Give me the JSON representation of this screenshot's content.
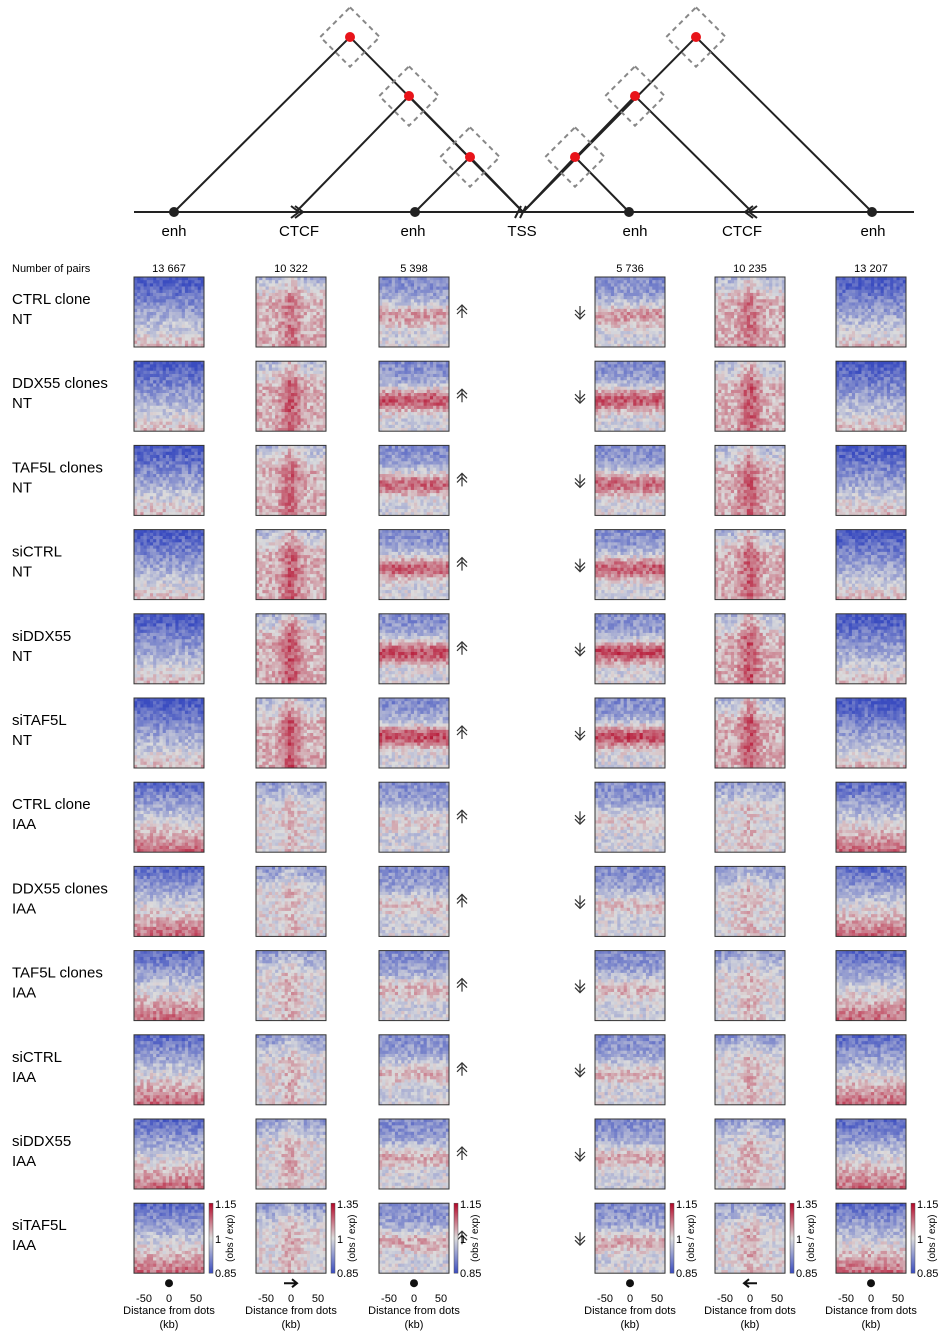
{
  "diagram": {
    "anchor_labels": [
      "enh",
      "CTCF",
      "enh",
      "TSS",
      "enh",
      "CTCF",
      "enh"
    ],
    "dot_color": "#e8141a",
    "line_color": "#222222",
    "box_color": "#888888"
  },
  "header": {
    "number_of_pairs_label": "Number of pairs",
    "pairs": [
      "13 667",
      "10 322",
      "5 398",
      "5 736",
      "10 235",
      "13 207"
    ]
  },
  "rows": [
    {
      "line1": "CTRL clone",
      "line2": "NT"
    },
    {
      "line1": "DDX55 clones",
      "line2": "NT"
    },
    {
      "line1": "TAF5L clones",
      "line2": "NT"
    },
    {
      "line1": "siCTRL",
      "line2": "NT"
    },
    {
      "line1": "siDDX55",
      "line2": "NT"
    },
    {
      "line1": "siTAF5L",
      "line2": "NT"
    },
    {
      "line1": "CTRL clone",
      "line2": "IAA"
    },
    {
      "line1": "DDX55 clones",
      "line2": "IAA"
    },
    {
      "line1": "TAF5L clones",
      "line2": "IAA"
    },
    {
      "line1": "siCTRL",
      "line2": "IAA"
    },
    {
      "line1": "siDDX55",
      "line2": "IAA"
    },
    {
      "line1": "siTAF5L",
      "line2": "IAA"
    }
  ],
  "colorbars": [
    {
      "max": "1.15",
      "mid": "1",
      "min": "0.85",
      "unit": "(obs / exp)"
    },
    {
      "max": "1.35",
      "mid": "1",
      "min": "0.85",
      "unit": "(obs / exp)"
    },
    {
      "max": "1.15",
      "mid": "1",
      "min": "0.85",
      "unit": "(obs / exp)"
    },
    {
      "max": "1.15",
      "mid": "1",
      "min": "0.85",
      "unit": "(obs / exp)"
    },
    {
      "max": "1.35",
      "mid": "1",
      "min": "0.85",
      "unit": "(obs / exp)"
    },
    {
      "max": "1.15",
      "mid": "1",
      "min": "0.85",
      "unit": "(obs / exp)"
    }
  ],
  "axis": {
    "ticks": [
      "-50",
      "0",
      "50"
    ],
    "label_line1": "Distance from dots",
    "label_line2": "(kb)",
    "anchor_symbols": [
      "dot",
      "arrow-right",
      "dot",
      "dot",
      "arrow-left",
      "dot"
    ]
  },
  "colormap": {
    "low": "#3a4cc0",
    "mid": "#dcdcdc",
    "high": "#b40426"
  }
}
